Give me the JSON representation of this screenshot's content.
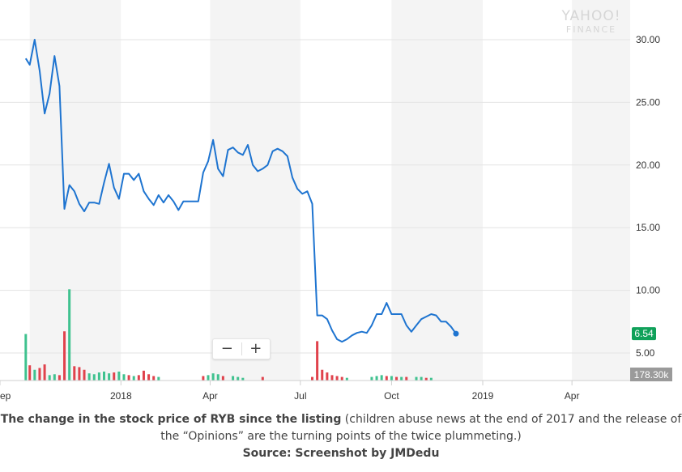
{
  "chart_data": {
    "type": "line",
    "source_watermark": [
      "YAHOO!",
      "FINANCE"
    ],
    "x_ticks": [
      "ep",
      "2018",
      "Apr",
      "Jul",
      "Oct",
      "2019",
      "Apr"
    ],
    "y_ticks": [
      "30.00",
      "25.00",
      "20.00",
      "15.00",
      "10.00",
      "5.00"
    ],
    "ylim": [
      3.0,
      32.0
    ],
    "series": [
      {
        "values": [
          [
            "2017-09-27",
            28.5
          ],
          [
            "2017-10-01",
            28.0
          ],
          [
            "2017-10-06",
            30.0
          ],
          [
            "2017-10-11",
            27.5
          ],
          [
            "2017-10-16",
            24.1
          ],
          [
            "2017-10-21",
            25.7
          ],
          [
            "2017-10-26",
            28.7
          ],
          [
            "2017-10-31",
            26.3
          ],
          [
            "2017-11-05",
            16.5
          ],
          [
            "2017-11-10",
            18.4
          ],
          [
            "2017-11-15",
            17.9
          ],
          [
            "2017-11-20",
            16.9
          ],
          [
            "2017-11-25",
            16.3
          ],
          [
            "2017-11-30",
            17.0
          ],
          [
            "2017-12-05",
            17.0
          ],
          [
            "2017-12-10",
            16.9
          ],
          [
            "2017-12-15",
            18.6
          ],
          [
            "2017-12-20",
            20.1
          ],
          [
            "2017-12-25",
            18.2
          ],
          [
            "2017-12-30",
            17.3
          ],
          [
            "2018-01-04",
            19.3
          ],
          [
            "2018-01-09",
            19.3
          ],
          [
            "2018-01-14",
            18.8
          ],
          [
            "2018-01-19",
            19.3
          ],
          [
            "2018-01-24",
            17.9
          ],
          [
            "2018-01-29",
            17.3
          ],
          [
            "2018-02-03",
            16.8
          ],
          [
            "2018-02-08",
            17.6
          ],
          [
            "2018-02-13",
            17.0
          ],
          [
            "2018-02-18",
            17.6
          ],
          [
            "2018-02-23",
            17.1
          ],
          [
            "2018-02-28",
            16.4
          ],
          [
            "2018-03-05",
            17.1
          ],
          [
            "2018-03-10",
            17.1
          ],
          [
            "2018-03-15",
            17.1
          ],
          [
            "2018-03-20",
            17.1
          ],
          [
            "2018-03-25",
            19.4
          ],
          [
            "2018-03-30",
            20.3
          ],
          [
            "2018-04-04",
            22.0
          ],
          [
            "2018-04-09",
            19.7
          ],
          [
            "2018-04-14",
            19.1
          ],
          [
            "2018-04-19",
            21.2
          ],
          [
            "2018-04-24",
            21.4
          ],
          [
            "2018-04-29",
            21.0
          ],
          [
            "2018-05-04",
            20.8
          ],
          [
            "2018-05-09",
            21.6
          ],
          [
            "2018-05-14",
            20.0
          ],
          [
            "2018-05-19",
            19.5
          ],
          [
            "2018-05-24",
            19.7
          ],
          [
            "2018-05-29",
            20.0
          ],
          [
            "2018-06-03",
            21.1
          ],
          [
            "2018-06-08",
            21.3
          ],
          [
            "2018-06-13",
            21.1
          ],
          [
            "2018-06-18",
            20.7
          ],
          [
            "2018-06-23",
            19.0
          ],
          [
            "2018-06-28",
            18.1
          ],
          [
            "2018-07-03",
            17.7
          ],
          [
            "2018-07-08",
            17.9
          ],
          [
            "2018-07-13",
            16.9
          ],
          [
            "2018-07-18",
            8.0
          ],
          [
            "2018-07-23",
            8.0
          ],
          [
            "2018-07-28",
            7.7
          ],
          [
            "2018-08-02",
            6.8
          ],
          [
            "2018-08-07",
            6.1
          ],
          [
            "2018-08-12",
            5.9
          ],
          [
            "2018-08-17",
            6.1
          ],
          [
            "2018-08-22",
            6.4
          ],
          [
            "2018-08-27",
            6.6
          ],
          [
            "2018-09-01",
            6.7
          ],
          [
            "2018-09-06",
            6.6
          ],
          [
            "2018-09-11",
            7.2
          ],
          [
            "2018-09-16",
            8.1
          ],
          [
            "2018-09-21",
            8.1
          ],
          [
            "2018-09-26",
            9.0
          ],
          [
            "2018-10-01",
            8.1
          ],
          [
            "2018-10-06",
            8.1
          ],
          [
            "2018-10-11",
            8.1
          ],
          [
            "2018-10-16",
            7.2
          ],
          [
            "2018-10-21",
            6.7
          ],
          [
            "2018-10-26",
            7.2
          ],
          [
            "2018-10-31",
            7.7
          ],
          [
            "2018-11-05",
            7.9
          ],
          [
            "2018-11-10",
            8.1
          ],
          [
            "2018-11-15",
            8.0
          ],
          [
            "2018-11-20",
            7.5
          ],
          [
            "2018-11-25",
            7.5
          ],
          [
            "2018-11-30",
            7.1
          ],
          [
            "2018-12-05",
            6.54
          ]
        ]
      }
    ],
    "last_price_label": "6.54",
    "volume_label": "178.30k",
    "volume_bars": [
      {
        "date": "2017-09-27",
        "v": 5.2,
        "dir": "up"
      },
      {
        "date": "2017-10-01",
        "v": 1.7,
        "dir": "down"
      },
      {
        "date": "2017-10-06",
        "v": 1.2,
        "dir": "up"
      },
      {
        "date": "2017-10-11",
        "v": 1.4,
        "dir": "down"
      },
      {
        "date": "2017-10-16",
        "v": 1.8,
        "dir": "down"
      },
      {
        "date": "2017-10-21",
        "v": 0.6,
        "dir": "up"
      },
      {
        "date": "2017-10-26",
        "v": 0.7,
        "dir": "up"
      },
      {
        "date": "2017-10-31",
        "v": 0.6,
        "dir": "down"
      },
      {
        "date": "2017-11-05",
        "v": 5.5,
        "dir": "down"
      },
      {
        "date": "2017-11-10",
        "v": 10.2,
        "dir": "up"
      },
      {
        "date": "2017-11-15",
        "v": 1.6,
        "dir": "down"
      },
      {
        "date": "2017-11-20",
        "v": 1.5,
        "dir": "down"
      },
      {
        "date": "2017-11-25",
        "v": 1.2,
        "dir": "down"
      },
      {
        "date": "2017-11-30",
        "v": 0.8,
        "dir": "up"
      },
      {
        "date": "2017-12-05",
        "v": 0.7,
        "dir": "up"
      },
      {
        "date": "2017-12-10",
        "v": 0.9,
        "dir": "up"
      },
      {
        "date": "2017-12-15",
        "v": 1.0,
        "dir": "up"
      },
      {
        "date": "2017-12-20",
        "v": 0.8,
        "dir": "up"
      },
      {
        "date": "2017-12-25",
        "v": 0.9,
        "dir": "down"
      },
      {
        "date": "2017-12-30",
        "v": 1.0,
        "dir": "up"
      },
      {
        "date": "2018-01-04",
        "v": 0.7,
        "dir": "up"
      },
      {
        "date": "2018-01-09",
        "v": 0.6,
        "dir": "down"
      },
      {
        "date": "2018-01-14",
        "v": 0.5,
        "dir": "up"
      },
      {
        "date": "2018-01-19",
        "v": 0.6,
        "dir": "down"
      },
      {
        "date": "2018-01-24",
        "v": 1.1,
        "dir": "down"
      },
      {
        "date": "2018-01-29",
        "v": 0.7,
        "dir": "down"
      },
      {
        "date": "2018-02-03",
        "v": 0.5,
        "dir": "down"
      },
      {
        "date": "2018-02-08",
        "v": 0.4,
        "dir": "up"
      },
      {
        "date": "2018-03-25",
        "v": 0.5,
        "dir": "down"
      },
      {
        "date": "2018-03-30",
        "v": 0.6,
        "dir": "up"
      },
      {
        "date": "2018-04-04",
        "v": 0.8,
        "dir": "up"
      },
      {
        "date": "2018-04-09",
        "v": 0.7,
        "dir": "up"
      },
      {
        "date": "2018-04-14",
        "v": 0.5,
        "dir": "down"
      },
      {
        "date": "2018-04-24",
        "v": 0.5,
        "dir": "up"
      },
      {
        "date": "2018-04-29",
        "v": 0.4,
        "dir": "up"
      },
      {
        "date": "2018-05-04",
        "v": 0.3,
        "dir": "up"
      },
      {
        "date": "2018-05-24",
        "v": 0.4,
        "dir": "down"
      },
      {
        "date": "2018-07-13",
        "v": 0.4,
        "dir": "down"
      },
      {
        "date": "2018-07-18",
        "v": 4.4,
        "dir": "down"
      },
      {
        "date": "2018-07-23",
        "v": 1.2,
        "dir": "down"
      },
      {
        "date": "2018-07-28",
        "v": 0.9,
        "dir": "down"
      },
      {
        "date": "2018-08-02",
        "v": 0.6,
        "dir": "down"
      },
      {
        "date": "2018-08-07",
        "v": 0.5,
        "dir": "down"
      },
      {
        "date": "2018-08-12",
        "v": 0.4,
        "dir": "down"
      },
      {
        "date": "2018-08-17",
        "v": 0.3,
        "dir": "up"
      },
      {
        "date": "2018-09-11",
        "v": 0.4,
        "dir": "up"
      },
      {
        "date": "2018-09-16",
        "v": 0.5,
        "dir": "up"
      },
      {
        "date": "2018-09-21",
        "v": 0.6,
        "dir": "up"
      },
      {
        "date": "2018-09-26",
        "v": 0.5,
        "dir": "down"
      },
      {
        "date": "2018-10-01",
        "v": 0.5,
        "dir": "up"
      },
      {
        "date": "2018-10-06",
        "v": 0.4,
        "dir": "down"
      },
      {
        "date": "2018-10-11",
        "v": 0.4,
        "dir": "up"
      },
      {
        "date": "2018-10-16",
        "v": 0.4,
        "dir": "down"
      },
      {
        "date": "2018-10-26",
        "v": 0.4,
        "dir": "up"
      },
      {
        "date": "2018-10-31",
        "v": 0.4,
        "dir": "up"
      },
      {
        "date": "2018-11-05",
        "v": 0.3,
        "dir": "down"
      },
      {
        "date": "2018-11-10",
        "v": 0.3,
        "dir": "up"
      }
    ],
    "vlim": [
      0,
      10.5
    ],
    "grid": true,
    "colors": {
      "line": "#1e74d0",
      "band": "#f4f4f4",
      "grid": "#e3e3e3",
      "vol_up": "#3fc28f",
      "vol_down": "#e0424c",
      "price_badge": "#10a15a",
      "vol_badge": "#9a9a9a"
    }
  },
  "zoom": {
    "minus": "−",
    "plus": "+"
  },
  "caption": {
    "bold": "The change in the stock price of RYB since the listing",
    "rest": " (children abuse  news at the end of 2017 and the release of the “Opinions” are the turning points of the twice plummeting.)",
    "source": "Source: Screenshot by JMDedu"
  }
}
